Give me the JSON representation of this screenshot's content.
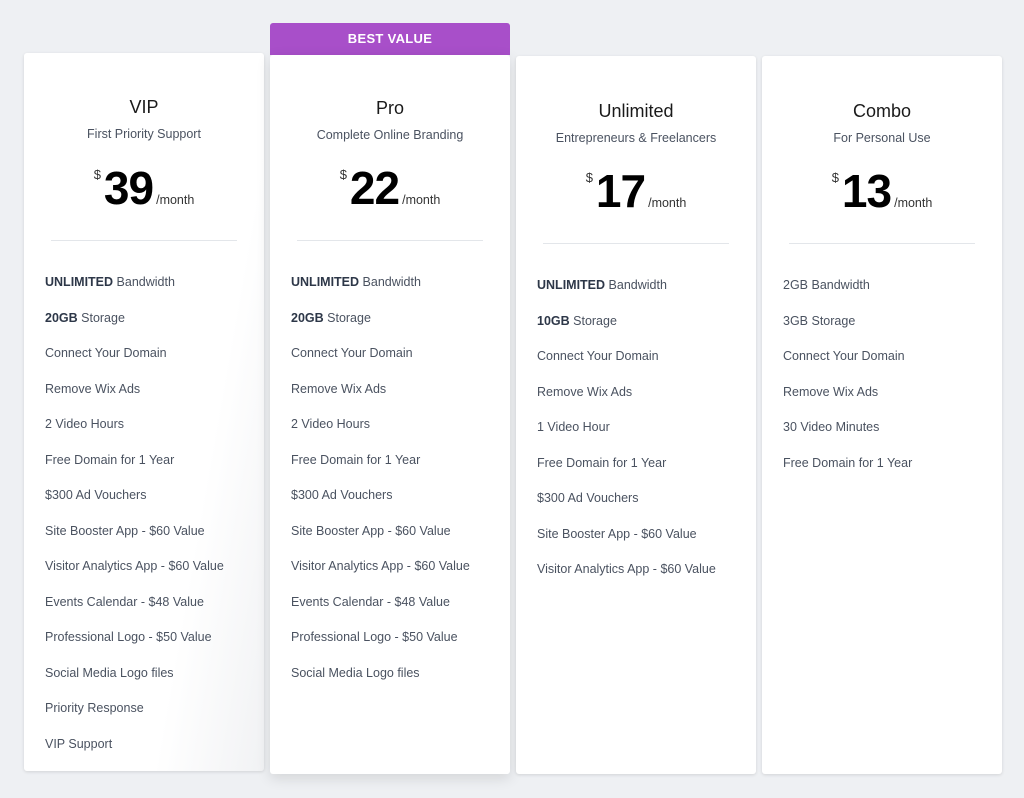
{
  "badge": "BEST VALUE",
  "accent": "#a84fc9",
  "plans": [
    {
      "name": "VIP",
      "subtitle": "First Priority Support",
      "currency": "$",
      "price": "39",
      "period": "/month",
      "features": [
        [
          "UNLIMITED",
          " Bandwidth"
        ],
        [
          "20GB",
          " Storage"
        ],
        [
          "",
          "Connect Your Domain"
        ],
        [
          "",
          "Remove Wix Ads"
        ],
        [
          "",
          "2 Video Hours"
        ],
        [
          "",
          "Free Domain for 1 Year"
        ],
        [
          "",
          "$300 Ad Vouchers"
        ],
        [
          "",
          "Site Booster App - $60 Value"
        ],
        [
          "",
          "Visitor Analytics App - $60 Value"
        ],
        [
          "",
          "Events Calendar - $48 Value"
        ],
        [
          "",
          "Professional Logo - $50 Value"
        ],
        [
          "",
          "Social Media Logo files"
        ],
        [
          "",
          "Priority Response"
        ],
        [
          "",
          "VIP Support"
        ]
      ]
    },
    {
      "name": "Pro",
      "subtitle": "Complete Online Branding",
      "currency": "$",
      "price": "22",
      "period": "/month",
      "features": [
        [
          "UNLIMITED",
          " Bandwidth"
        ],
        [
          "20GB",
          " Storage"
        ],
        [
          "",
          "Connect Your Domain"
        ],
        [
          "",
          "Remove Wix Ads"
        ],
        [
          "",
          "2 Video Hours"
        ],
        [
          "",
          "Free Domain for 1 Year"
        ],
        [
          "",
          "$300 Ad Vouchers"
        ],
        [
          "",
          "Site Booster App - $60 Value"
        ],
        [
          "",
          "Visitor Analytics App - $60 Value"
        ],
        [
          "",
          "Events Calendar - $48 Value"
        ],
        [
          "",
          "Professional Logo - $50 Value"
        ],
        [
          "",
          "Social Media Logo files"
        ]
      ]
    },
    {
      "name": "Unlimited",
      "subtitle": "Entrepreneurs & Freelancers",
      "currency": "$",
      "price": "17",
      "period": "/month",
      "features": [
        [
          "UNLIMITED",
          " Bandwidth"
        ],
        [
          "10GB",
          " Storage"
        ],
        [
          "",
          "Connect Your Domain"
        ],
        [
          "",
          "Remove Wix Ads"
        ],
        [
          "",
          "1 Video Hour"
        ],
        [
          "",
          "Free Domain for 1 Year"
        ],
        [
          "",
          "$300 Ad Vouchers"
        ],
        [
          "",
          "Site Booster App - $60 Value"
        ],
        [
          "",
          "Visitor Analytics App - $60 Value"
        ]
      ]
    },
    {
      "name": "Combo",
      "subtitle": "For Personal Use",
      "currency": "$",
      "price": "13",
      "period": "/month",
      "features": [
        [
          "",
          "2GB Bandwidth"
        ],
        [
          "",
          "3GB Storage"
        ],
        [
          "",
          "Connect Your Domain"
        ],
        [
          "",
          "Remove Wix Ads"
        ],
        [
          "",
          "30 Video Minutes"
        ],
        [
          "",
          "Free Domain for 1 Year"
        ]
      ]
    }
  ]
}
